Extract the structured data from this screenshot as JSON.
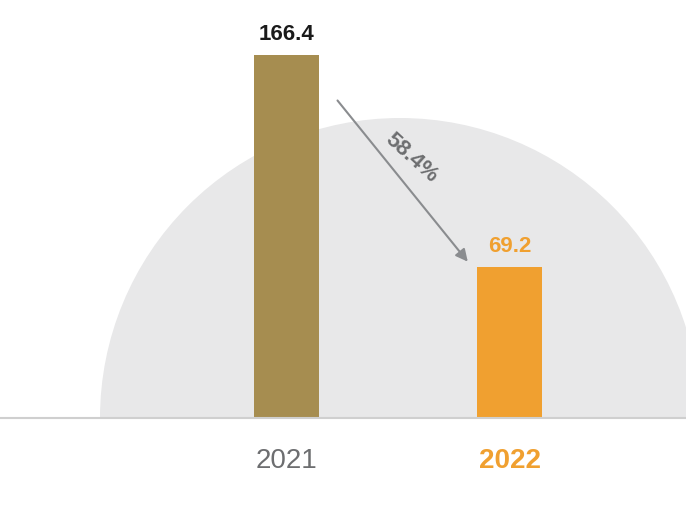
{
  "chart_data": {
    "type": "bar",
    "categories": [
      "2021",
      "2022"
    ],
    "values": [
      166.4,
      69.2
    ],
    "colors": [
      "#a68d50",
      "#f0a030"
    ],
    "data_labels": true,
    "tick_labels": "x",
    "annotation": "58.4%"
  }
}
